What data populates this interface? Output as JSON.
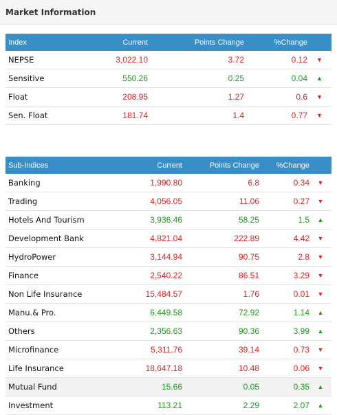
{
  "panel": {
    "title": "Market Information"
  },
  "index_table": {
    "headers": [
      "Index",
      "Current",
      "Points Change",
      "%Change"
    ],
    "rows": [
      {
        "name": "NEPSE",
        "current": "3,022.10",
        "points": "3.72",
        "pct": "0.12",
        "trend": "down"
      },
      {
        "name": "Sensitive",
        "current": "550.26",
        "points": "0.25",
        "pct": "0.04",
        "trend": "up"
      },
      {
        "name": "Float",
        "current": "208.95",
        "points": "1.27",
        "pct": "0.6",
        "trend": "down"
      },
      {
        "name": "Sen. Float",
        "current": "181.74",
        "points": "1.4",
        "pct": "0.77",
        "trend": "down"
      }
    ]
  },
  "sub_indices_table": {
    "headers": [
      "Sub-Indices",
      "Current",
      "Points Change",
      "%Change"
    ],
    "rows": [
      {
        "name": "Banking",
        "current": "1,990.80",
        "points": "6.8",
        "pct": "0.34",
        "trend": "down"
      },
      {
        "name": "Trading",
        "current": "4,056.05",
        "points": "11.06",
        "pct": "0.27",
        "trend": "down"
      },
      {
        "name": "Hotels And Tourism",
        "current": "3,936.46",
        "points": "58.25",
        "pct": "1.5",
        "trend": "up"
      },
      {
        "name": "Development Bank",
        "current": "4,821.04",
        "points": "222.89",
        "pct": "4.42",
        "trend": "down"
      },
      {
        "name": "HydroPower",
        "current": "3,144.94",
        "points": "90.75",
        "pct": "2.8",
        "trend": "down"
      },
      {
        "name": "Finance",
        "current": "2,540.22",
        "points": "86.51",
        "pct": "3.29",
        "trend": "down"
      },
      {
        "name": "Non Life Insurance",
        "current": "15,484.57",
        "points": "1.76",
        "pct": "0.01",
        "trend": "down"
      },
      {
        "name": "Manu.& Pro.",
        "current": "6,449.58",
        "points": "72.92",
        "pct": "1.14",
        "trend": "up"
      },
      {
        "name": "Others",
        "current": "2,356.63",
        "points": "90.36",
        "pct": "3.99",
        "trend": "up"
      },
      {
        "name": "Microfinance",
        "current": "5,311.76",
        "points": "39.14",
        "pct": "0.73",
        "trend": "down"
      },
      {
        "name": "Life Insurance",
        "current": "18,647.18",
        "points": "10.48",
        "pct": "0.06",
        "trend": "down"
      },
      {
        "name": "Mutual Fund",
        "current": "15.66",
        "points": "0.05",
        "pct": "0.35",
        "trend": "up",
        "highlight": true
      },
      {
        "name": "Investment",
        "current": "113.21",
        "points": "2.29",
        "pct": "2.07",
        "trend": "up"
      }
    ]
  },
  "colors": {
    "header": "#3a8ec8",
    "down": "#e02020",
    "up": "#1a9a1a"
  },
  "icons": {
    "down": "triangle-down-icon",
    "up": "triangle-up-icon"
  }
}
